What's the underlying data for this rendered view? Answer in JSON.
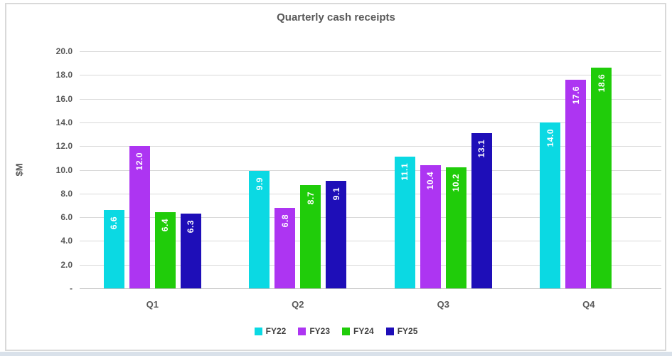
{
  "chart_data": {
    "type": "bar",
    "title": "Quarterly cash receipts",
    "ylabel": "$M",
    "categories": [
      "Q1",
      "Q2",
      "Q3",
      "Q4"
    ],
    "series": [
      {
        "name": "FY22",
        "color": "#0BD9E3",
        "values": [
          6.6,
          9.9,
          11.1,
          14.0
        ]
      },
      {
        "name": "FY23",
        "color": "#AD35F2",
        "values": [
          12.0,
          6.8,
          10.4,
          17.6
        ]
      },
      {
        "name": "FY24",
        "color": "#20CC0A",
        "values": [
          6.4,
          8.7,
          10.2,
          18.6
        ]
      },
      {
        "name": "FY25",
        "color": "#1E0EB8",
        "values": [
          6.3,
          9.1,
          13.1,
          null
        ]
      }
    ],
    "ylim": [
      0,
      20
    ],
    "y_tick_labels": [
      "20.0",
      "18.0",
      "16.0",
      "14.0",
      "12.0",
      "10.0",
      "8.0",
      "6.0",
      "4.0",
      "2.0",
      "-"
    ],
    "grid": true,
    "legend_position": "bottom",
    "data_labels": {
      "color": "#FFFFFF",
      "rotation": "vertical",
      "format": "0.0"
    }
  },
  "style": {
    "frame_border_color": "#D9D9D9",
    "gridline_color": "#D9D9D9",
    "axis_line_color": "#BFBFBF",
    "axis_text_color": "#595959",
    "legend_text_color": "#404040",
    "bottom_strip_color": "#d9e1ea"
  }
}
